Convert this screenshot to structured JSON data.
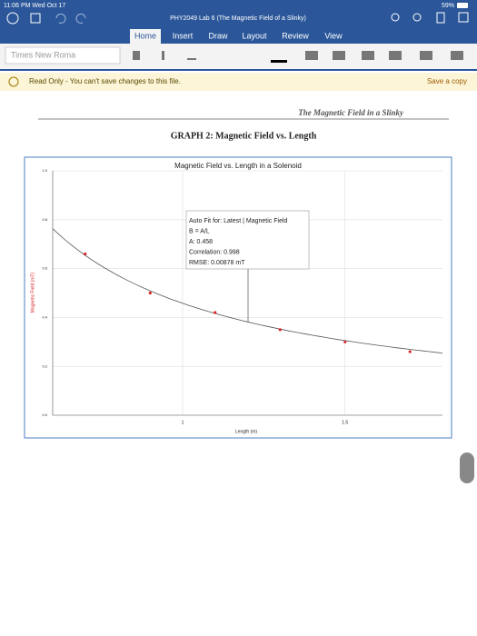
{
  "status_bar": {
    "time": "11:06 PM  Wed Oct 17",
    "battery": "59%"
  },
  "toolbar": {
    "doc_title": "PHY2049 Lab 6 (The Magnetic Field of a Slinky)",
    "tabs": [
      "Home",
      "Insert",
      "Draw",
      "Layout",
      "Review",
      "View"
    ],
    "font": "Times New Roma"
  },
  "banner": {
    "message": "Read Only - You can't save changes to this file.",
    "action": "Save a copy"
  },
  "document": {
    "header": "The Magnetic Field in a Slinky",
    "heading": "GRAPH 2: Magnetic Field vs. Length"
  },
  "chart_data": {
    "type": "scatter",
    "title": "Magnetic Field vs. Length in a Solenoid",
    "x_label": "Length (m)",
    "y_label": "Magnetic Field (mT)",
    "x": [
      0.7,
      0.9,
      1.1,
      1.3,
      1.5,
      1.7
    ],
    "values": [
      0.66,
      0.5,
      0.42,
      0.35,
      0.3,
      0.26
    ],
    "color": "#d62728",
    "xlim": [
      0.6,
      1.8
    ],
    "xticks": [
      1,
      1.5
    ],
    "ylim": [
      0,
      1.0
    ],
    "yticks": [
      {
        "value": 0,
        "label": "0.0"
      },
      0.2,
      0.4,
      0.6,
      0.8,
      {
        "value": 1,
        "label": "1.0"
      }
    ],
    "grid": true,
    "annotation": [
      "Auto Fit for: Latest | Magnetic Field",
      "B = A/L",
      "Correlation: 0.998",
      "RMSE: 0.00878 mT"
    ],
    "fit": {
      "value": 0.458,
      "label": "A: 0.458"
    }
  }
}
